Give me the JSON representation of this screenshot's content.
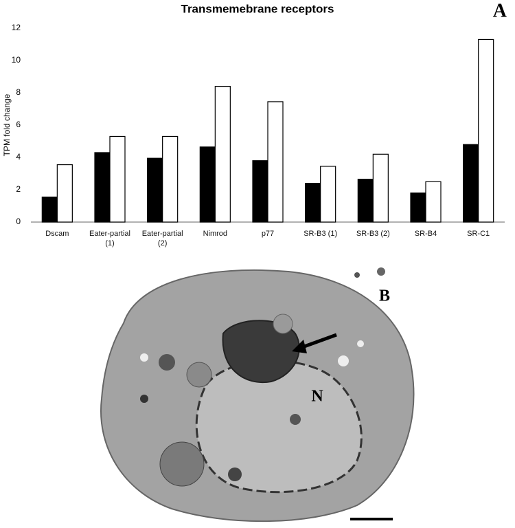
{
  "chart_data": {
    "type": "bar",
    "title": "Transmemebrane receptors",
    "y_label": "TPM fold change",
    "categories": [
      "Dscam",
      "Eater-partial (1)",
      "Eater-partial (2)",
      "Nimrod",
      "p77",
      "SR-B3 (1)",
      "SR-B3 (2)",
      "SR-B4",
      "SR-C1"
    ],
    "series": [
      {
        "color": "#000000",
        "values": [
          1.55,
          4.3,
          3.95,
          4.65,
          3.8,
          2.4,
          2.65,
          1.8,
          4.8
        ]
      },
      {
        "color": "#ffffff",
        "values": [
          3.55,
          5.3,
          5.3,
          8.4,
          7.45,
          3.45,
          4.2,
          2.5,
          11.3
        ]
      }
    ],
    "ylim": [
      0,
      12
    ],
    "yticks": [
      0,
      2,
      4,
      6,
      8,
      10,
      12
    ],
    "grid": false
  },
  "panel_labels": {
    "a": "A",
    "b": "B"
  },
  "micrograph": {
    "nucleus_label": "N"
  }
}
